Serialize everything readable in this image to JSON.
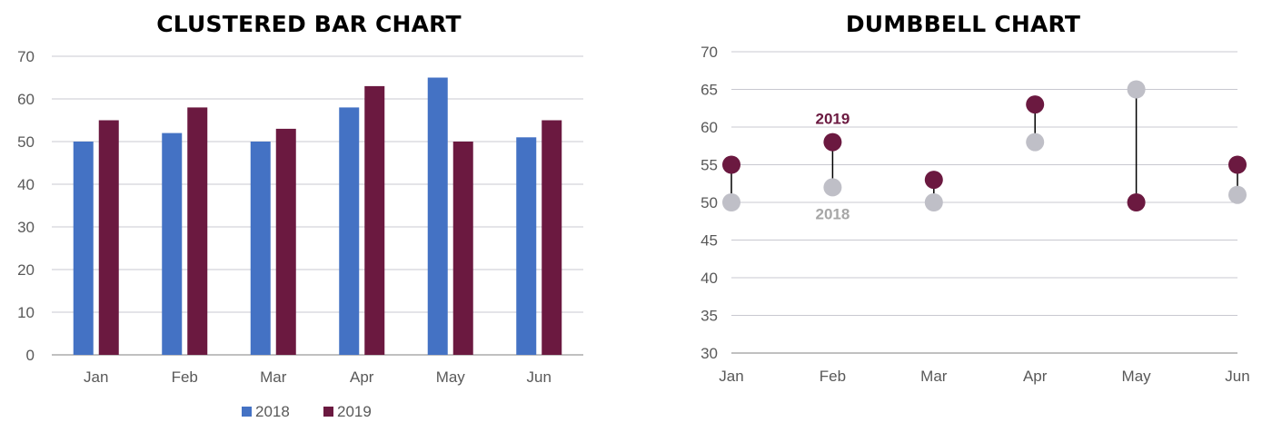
{
  "colors": {
    "s2018": "#4472C4",
    "s2019": "#6B1940",
    "dot2018": "#BFBFC7",
    "grid": "#C8C8D0",
    "axis": "#808080",
    "connector": "#000000",
    "ann2018": "#A6A6A6"
  },
  "chart_data": [
    {
      "type": "bar",
      "title": "CLUSTERED BAR CHART",
      "categories": [
        "Jan",
        "Feb",
        "Mar",
        "Apr",
        "May",
        "Jun"
      ],
      "series": [
        {
          "name": "2018",
          "values": [
            50,
            52,
            50,
            58,
            65,
            51
          ]
        },
        {
          "name": "2019",
          "values": [
            55,
            58,
            53,
            63,
            50,
            55
          ]
        }
      ],
      "ylim": [
        0,
        70
      ],
      "yticks": [
        0,
        10,
        20,
        30,
        40,
        50,
        60,
        70
      ],
      "grid": true,
      "legend": "bottom"
    },
    {
      "type": "scatter",
      "title": "DUMBBELL CHART",
      "categories": [
        "Jan",
        "Feb",
        "Mar",
        "Apr",
        "May",
        "Jun"
      ],
      "series": [
        {
          "name": "2018",
          "values": [
            50,
            52,
            50,
            58,
            65,
            51
          ]
        },
        {
          "name": "2019",
          "values": [
            55,
            58,
            53,
            63,
            50,
            55
          ]
        }
      ],
      "ylim": [
        30,
        70
      ],
      "yticks": [
        30,
        35,
        40,
        45,
        50,
        55,
        60,
        65,
        70
      ],
      "grid": true,
      "annotations": [
        {
          "text": "2019",
          "category": "Feb",
          "series": "2019"
        },
        {
          "text": "2018",
          "category": "Feb",
          "series": "2018"
        }
      ]
    }
  ]
}
